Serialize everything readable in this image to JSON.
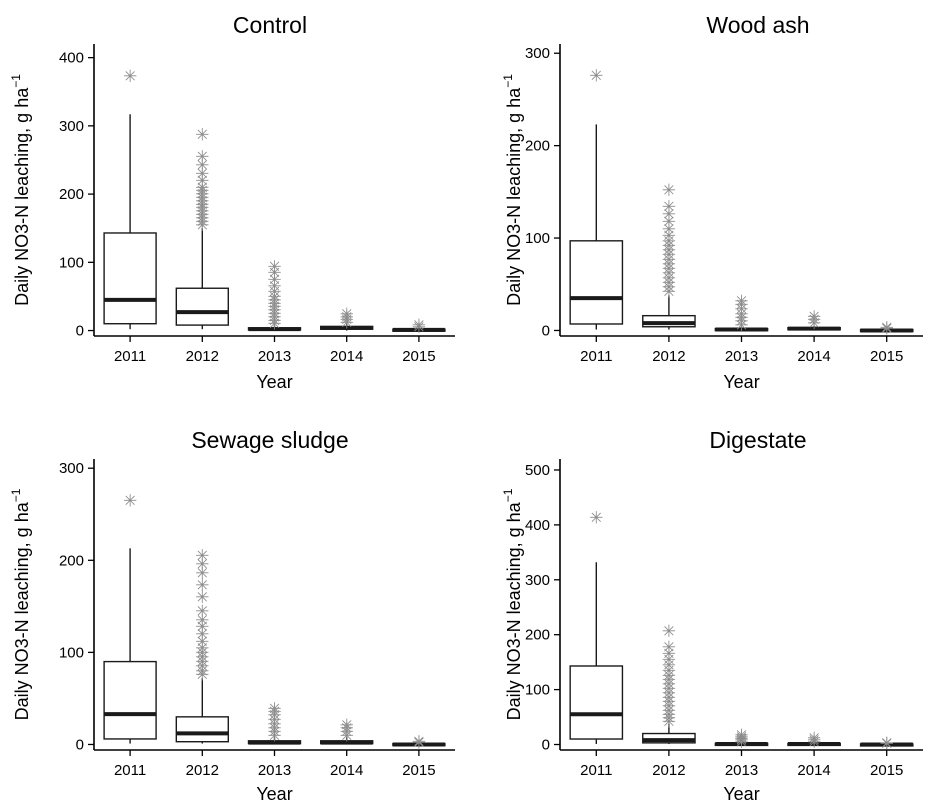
{
  "chart_data": [
    {
      "type": "box",
      "title": "Control",
      "xlabel": "Year",
      "ylabel": "Daily NO3-N leaching, g ha",
      "ylabel_sup": "−1",
      "categories": [
        "2011",
        "2012",
        "2013",
        "2014",
        "2015"
      ],
      "yticks": [
        "0",
        "100",
        "200",
        "300",
        "400"
      ],
      "ylim": [
        -8,
        420
      ],
      "outlier_marker": "*",
      "boxes": [
        {
          "year": "2011",
          "low": 2,
          "q1": 10,
          "median": 45,
          "q3": 143,
          "high": 317,
          "outliers": [
            373
          ]
        },
        {
          "year": "2012",
          "low": 2,
          "q1": 8,
          "median": 27,
          "q3": 62,
          "high": 150,
          "outliers": [
            155,
            160,
            165,
            170,
            175,
            180,
            185,
            190,
            195,
            200,
            205,
            210,
            220,
            230,
            243,
            255,
            287
          ]
        },
        {
          "year": "2013",
          "low": 0,
          "q1": 1,
          "median": 2,
          "q3": 4,
          "high": 8,
          "outliers": [
            10,
            15,
            20,
            25,
            30,
            35,
            40,
            45,
            50,
            57,
            65,
            75,
            85,
            94
          ]
        },
        {
          "year": "2014",
          "low": 0,
          "q1": 2,
          "median": 4,
          "q3": 6,
          "high": 10,
          "outliers": [
            12,
            16,
            20,
            24
          ]
        },
        {
          "year": "2015",
          "low": 0,
          "q1": 0,
          "median": 1,
          "q3": 2,
          "high": 3,
          "outliers": [
            5,
            8
          ]
        }
      ]
    },
    {
      "type": "box",
      "title": "Wood ash",
      "xlabel": "Year",
      "ylabel": "Daily NO3-N leaching, g ha",
      "ylabel_sup": "−1",
      "categories": [
        "2011",
        "2012",
        "2013",
        "2014",
        "2015"
      ],
      "yticks": [
        "0",
        "100",
        "200",
        "300"
      ],
      "ylim": [
        -6,
        310
      ],
      "outlier_marker": "*",
      "boxes": [
        {
          "year": "2011",
          "low": 1,
          "q1": 7,
          "median": 35,
          "q3": 97,
          "high": 223,
          "outliers": [
            276
          ]
        },
        {
          "year": "2012",
          "low": 1,
          "q1": 4,
          "median": 8,
          "q3": 16,
          "high": 38,
          "outliers": [
            42,
            47,
            52,
            57,
            62,
            67,
            72,
            77,
            82,
            87,
            92,
            97,
            103,
            110,
            118,
            126,
            134,
            152
          ]
        },
        {
          "year": "2013",
          "low": 0,
          "q1": 0,
          "median": 1,
          "q3": 2,
          "high": 4,
          "outliers": [
            6,
            10,
            14,
            18,
            23,
            28,
            32
          ]
        },
        {
          "year": "2014",
          "low": 0,
          "q1": 1,
          "median": 2,
          "q3": 3,
          "high": 5,
          "outliers": [
            8,
            12,
            15
          ]
        },
        {
          "year": "2015",
          "low": 0,
          "q1": 0,
          "median": 0,
          "q3": 1,
          "high": 1,
          "outliers": [
            2,
            3
          ]
        }
      ]
    },
    {
      "type": "box",
      "title": "Sewage sludge",
      "xlabel": "Year",
      "ylabel": "Daily NO3-N leaching, g ha",
      "ylabel_sup": "−1",
      "categories": [
        "2011",
        "2012",
        "2013",
        "2014",
        "2015"
      ],
      "yticks": [
        "0",
        "100",
        "200",
        "300"
      ],
      "ylim": [
        -6,
        310
      ],
      "outlier_marker": "*",
      "boxes": [
        {
          "year": "2011",
          "low": 1,
          "q1": 6,
          "median": 33,
          "q3": 90,
          "high": 213,
          "outliers": [
            265
          ]
        },
        {
          "year": "2012",
          "low": 1,
          "q1": 3,
          "median": 12,
          "q3": 30,
          "high": 72,
          "outliers": [
            76,
            80,
            85,
            90,
            95,
            100,
            105,
            112,
            120,
            128,
            135,
            145,
            160,
            173,
            186,
            196,
            205
          ]
        },
        {
          "year": "2013",
          "low": 0,
          "q1": 1,
          "median": 2,
          "q3": 4,
          "high": 8,
          "outliers": [
            10,
            14,
            18,
            22,
            27,
            32,
            36,
            39
          ]
        },
        {
          "year": "2014",
          "low": 0,
          "q1": 1,
          "median": 2,
          "q3": 4,
          "high": 8,
          "outliers": [
            10,
            14,
            18,
            21
          ]
        },
        {
          "year": "2015",
          "low": 0,
          "q1": 0,
          "median": 0,
          "q3": 1,
          "high": 1,
          "outliers": [
            2,
            3
          ]
        }
      ]
    },
    {
      "type": "box",
      "title": "Digestate",
      "xlabel": "Year",
      "ylabel": "Daily NO3-N leaching, g ha",
      "ylabel_sup": "−1",
      "categories": [
        "2011",
        "2012",
        "2013",
        "2014",
        "2015"
      ],
      "yticks": [
        "0",
        "100",
        "200",
        "300",
        "400",
        "500"
      ],
      "ylim": [
        -10,
        520
      ],
      "outlier_marker": "*",
      "boxes": [
        {
          "year": "2011",
          "low": 1,
          "q1": 10,
          "median": 55,
          "q3": 143,
          "high": 332,
          "outliers": [
            413
          ]
        },
        {
          "year": "2012",
          "low": 1,
          "q1": 3,
          "median": 8,
          "q3": 20,
          "high": 38,
          "outliers": [
            42,
            48,
            55,
            62,
            70,
            78,
            86,
            94,
            102,
            110,
            118,
            126,
            135,
            145,
            155,
            166,
            178,
            207
          ]
        },
        {
          "year": "2013",
          "low": 0,
          "q1": 0,
          "median": 1,
          "q3": 2,
          "high": 3,
          "outliers": [
            5,
            8,
            11,
            14,
            17
          ]
        },
        {
          "year": "2014",
          "low": 0,
          "q1": 0,
          "median": 1,
          "q3": 2,
          "high": 3,
          "outliers": [
            5,
            8,
            12
          ]
        },
        {
          "year": "2015",
          "low": 0,
          "q1": 0,
          "median": 0,
          "q3": 1,
          "high": 1,
          "outliers": [
            2,
            3
          ]
        }
      ]
    }
  ]
}
